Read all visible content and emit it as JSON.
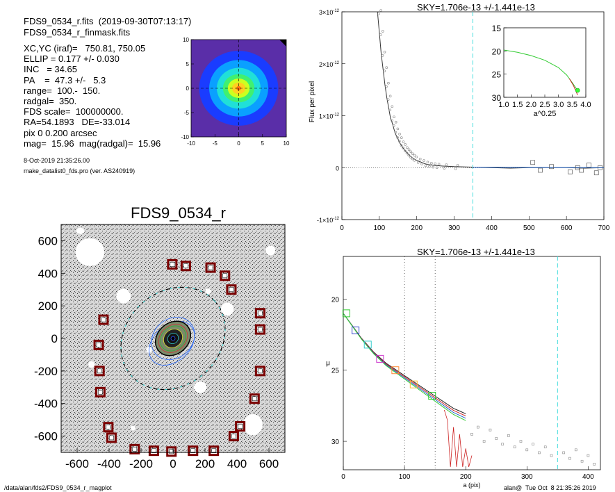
{
  "header": {
    "filename": "FDS9_0534_r.fits",
    "datetime": "(2019-09-30T07:13:17)",
    "mask": "FDS9_0534_r_finmask.fits"
  },
  "info_lines": [
    "XC,YC (iraf)=   750.81, 750.05",
    "ELLIP = 0.177 +/- 0.030",
    "INC   = 34.65",
    "PA    =  47.3 +/-   5.3",
    "range=  100.-  150.",
    "radgal=  350.",
    "FDS scale=  100000000.",
    "RA=54.1893   DE=-33.014",
    "pix 0 0.200 arcsec",
    "mag=  15.96  mag(radgal)=  15.96"
  ],
  "run_date": "8-Oct-2019 21:35:26.00",
  "program": "make_datalist0_fds.pro (ver. AS240919)",
  "footer": {
    "path": "/data/alan/fds2/FDS9_0534_r_magplot",
    "user": "alan@  Tue Oct  8 21:35:26 2019"
  },
  "chart_data": [
    {
      "type": "heatmap",
      "description_free": true,
      "xlim": [
        -10,
        10
      ],
      "ylim": [
        -10,
        10
      ],
      "x_ticks": [
        "-10",
        "-5",
        "0",
        "5",
        "10"
      ],
      "y_ticks": [
        "-10",
        "-5",
        "0",
        "5",
        "10"
      ],
      "colors": {
        "outer": "#5a2ea8",
        "l1": "#1a3cff",
        "l2": "#0aa0ff",
        "l3": "#20e0d8",
        "l4": "#40f070",
        "l5": "#ccff20",
        "core": "#ffd020",
        "peak": "#ff7010"
      }
    },
    {
      "type": "scatter",
      "title": "FDS9_0534_r",
      "xlim": [
        -700,
        700
      ],
      "ylim": [
        -700,
        700
      ],
      "x_ticks": [
        "-600",
        "-400",
        "-200",
        "0",
        "200",
        "400",
        "600"
      ],
      "y_ticks": [
        "600",
        "400",
        "200",
        "0",
        "-200",
        "-400",
        "-600"
      ],
      "sky_boxes": [
        [
          -5,
          455
        ],
        [
          80,
          445
        ],
        [
          235,
          435
        ],
        [
          325,
          385
        ],
        [
          365,
          300
        ],
        [
          545,
          155
        ],
        [
          545,
          55
        ],
        [
          -435,
          115
        ],
        [
          -465,
          -40
        ],
        [
          -460,
          -200
        ],
        [
          -455,
          -330
        ],
        [
          545,
          -200
        ],
        [
          510,
          -370
        ],
        [
          -405,
          -545
        ],
        [
          -385,
          -610
        ],
        [
          420,
          -540
        ],
        [
          380,
          -600
        ],
        [
          -240,
          -680
        ],
        [
          -120,
          -690
        ],
        [
          -10,
          -695
        ],
        [
          125,
          -690
        ],
        [
          255,
          -690
        ]
      ],
      "ellipse_radgal": {
        "a": 350,
        "ellip": 0.177,
        "pa": 47.3
      }
    },
    {
      "type": "line",
      "title": "SKY=1.706e-13 +/-1.441e-13",
      "ylabel": "Flux per pixel",
      "xlim": [
        0,
        700
      ],
      "ylim": [
        -1e-12,
        3e-12
      ],
      "x_ticks": [
        "0",
        "100",
        "200",
        "300",
        "400",
        "500",
        "600",
        "700"
      ],
      "y_ticks": [
        {
          "mant": "-1×10",
          "exp": "-12",
          "value": -1e-12
        },
        {
          "mant": "0",
          "exp": "",
          "value": 0
        },
        {
          "mant": "1×10",
          "exp": "-12",
          "value": 1e-12
        },
        {
          "mant": "2×10",
          "exp": "-12",
          "value": 2e-12
        },
        {
          "mant": "3×10",
          "exp": "-12",
          "value": 3e-12
        }
      ],
      "vline_radgal": 350,
      "profile": [
        [
          95,
          3e-12
        ],
        [
          100,
          2.6e-12
        ],
        [
          105,
          2.2e-12
        ],
        [
          110,
          1.9e-12
        ],
        [
          115,
          1.6e-12
        ],
        [
          120,
          1.35e-12
        ],
        [
          125,
          1.15e-12
        ],
        [
          130,
          9.5e-13
        ],
        [
          135,
          8.5e-13
        ],
        [
          140,
          7.2e-13
        ],
        [
          145,
          6.2e-13
        ],
        [
          150,
          5.5e-13
        ],
        [
          155,
          4.7e-13
        ],
        [
          160,
          4.2e-13
        ],
        [
          165,
          3.6e-13
        ],
        [
          170,
          3.2e-13
        ],
        [
          175,
          2.8e-13
        ],
        [
          180,
          2.4e-13
        ],
        [
          185,
          2.1e-13
        ],
        [
          190,
          1.8e-13
        ],
        [
          200,
          1.4e-13
        ],
        [
          210,
          1.1e-13
        ],
        [
          220,
          8e-14
        ],
        [
          230,
          6e-14
        ],
        [
          240,
          5e-14
        ],
        [
          250,
          4e-14
        ],
        [
          270,
          3e-14
        ],
        [
          300,
          2e-14
        ],
        [
          350,
          1e-14
        ],
        [
          400,
          0.0
        ],
        [
          450,
          -1e-14
        ],
        [
          500,
          0.0
        ],
        [
          550,
          0.0
        ],
        [
          600,
          0.0
        ],
        [
          650,
          -1e-14
        ],
        [
          700,
          0.0
        ]
      ],
      "outer_boxes": [
        [
          510,
          1e-13
        ],
        [
          530,
          -5e-14
        ],
        [
          560,
          2e-14
        ],
        [
          610,
          -8e-14
        ],
        [
          630,
          0.0
        ],
        [
          640,
          -5e-14
        ],
        [
          660,
          5e-14
        ],
        [
          680,
          -1e-13
        ],
        [
          690,
          0.0
        ]
      ],
      "inset": {
        "xlabel": "a^0.25",
        "xlim": [
          1.0,
          4.0
        ],
        "ylim": [
          30,
          15
        ],
        "x_ticks": [
          "1.0",
          "1.5",
          "2.0",
          "2.5",
          "3.0",
          "3.5",
          "4.0"
        ],
        "y_ticks": [
          "15",
          "20",
          "25",
          "30"
        ],
        "green": [
          [
            1.0,
            19.8
          ],
          [
            1.5,
            20.3
          ],
          [
            2.0,
            21.0
          ],
          [
            2.5,
            22.0
          ],
          [
            3.0,
            23.6
          ],
          [
            3.3,
            25.2
          ],
          [
            3.5,
            26.8
          ],
          [
            3.7,
            28.5
          ]
        ],
        "red": [
          [
            3.4,
            26.0
          ],
          [
            3.55,
            27.5
          ],
          [
            3.7,
            29.5
          ]
        ]
      }
    },
    {
      "type": "line",
      "title": "SKY=1.706e-13 +/-1.441e-13",
      "xlabel": "a (pix)",
      "ylabel": "μ",
      "xlim": [
        0,
        420
      ],
      "ylim": [
        32,
        17
      ],
      "x_ticks": [
        "0",
        "100",
        "200",
        "300",
        "400"
      ],
      "y_ticks": [
        "20",
        "25",
        "30"
      ],
      "vlines_range": [
        100,
        150
      ],
      "vline_radgal": 350,
      "profile": [
        [
          0,
          21.0
        ],
        [
          10,
          21.6
        ],
        [
          20,
          22.2
        ],
        [
          30,
          22.8
        ],
        [
          40,
          23.3
        ],
        [
          50,
          23.8
        ],
        [
          60,
          24.2
        ],
        [
          70,
          24.6
        ],
        [
          80,
          24.9
        ],
        [
          90,
          25.2
        ],
        [
          100,
          25.5
        ],
        [
          110,
          25.8
        ],
        [
          120,
          26.1
        ],
        [
          130,
          26.4
        ],
        [
          140,
          26.7
        ],
        [
          150,
          27.0
        ],
        [
          160,
          27.3
        ],
        [
          170,
          27.6
        ],
        [
          180,
          27.9
        ],
        [
          190,
          28.1
        ],
        [
          200,
          28.3
        ]
      ],
      "markers": [
        {
          "x": 5,
          "y": 21.0,
          "color": "#33cc33"
        },
        {
          "x": 20,
          "y": 22.2,
          "color": "#3344cc"
        },
        {
          "x": 40,
          "y": 23.2,
          "color": "#33cccc"
        },
        {
          "x": 60,
          "y": 24.2,
          "color": "#cc33cc"
        },
        {
          "x": 85,
          "y": 25.0,
          "color": "#ff8833"
        },
        {
          "x": 115,
          "y": 26.0,
          "color": "#ffbb33"
        },
        {
          "x": 145,
          "y": 26.8,
          "color": "#33cc33"
        }
      ],
      "scatter_outer": [
        [
          210,
          29.5
        ],
        [
          220,
          29.0
        ],
        [
          230,
          30.0
        ],
        [
          240,
          29.2
        ],
        [
          250,
          29.8
        ],
        [
          260,
          30.2
        ],
        [
          270,
          29.6
        ],
        [
          280,
          30.4
        ],
        [
          290,
          30.0
        ],
        [
          300,
          30.6
        ],
        [
          310,
          30.2
        ],
        [
          320,
          30.8
        ],
        [
          330,
          30.4
        ],
        [
          340,
          31.0
        ],
        [
          360,
          30.8
        ],
        [
          370,
          31.2
        ],
        [
          380,
          30.6
        ],
        [
          390,
          31.4
        ],
        [
          400,
          31.0
        ],
        [
          410,
          31.6
        ]
      ]
    }
  ]
}
